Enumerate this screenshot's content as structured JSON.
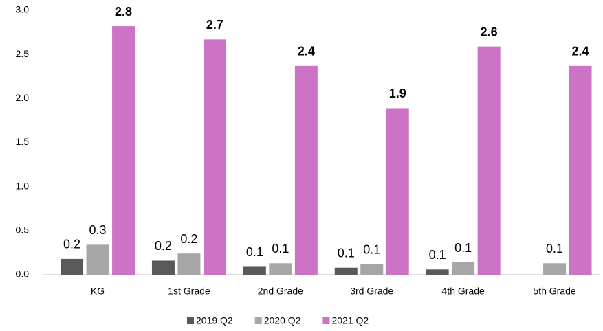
{
  "chart_data": {
    "type": "bar",
    "categories": [
      "KG",
      "1st Grade",
      "2nd Grade",
      "3rd Grade",
      "4th Grade",
      "5th Grade"
    ],
    "series": [
      {
        "name": "2019 Q2",
        "color": "#595959",
        "values": [
          0.18,
          0.16,
          0.09,
          0.08,
          0.06,
          null
        ],
        "value_labels": [
          "0.2",
          "0.2",
          "0.1",
          "0.1",
          "0.1",
          null
        ]
      },
      {
        "name": "2020 Q2",
        "color": "#a6a6a6",
        "values": [
          0.34,
          0.24,
          0.13,
          0.12,
          0.14,
          0.13
        ],
        "value_labels": [
          "0.3",
          "0.2",
          "0.1",
          "0.1",
          "0.1",
          "0.1"
        ]
      },
      {
        "name": "2021 Q2",
        "color": "#cc73c6",
        "values": [
          2.82,
          2.67,
          2.37,
          1.89,
          2.59,
          2.37
        ],
        "value_labels": [
          "2.8",
          "2.7",
          "2.4",
          "1.9",
          "2.6",
          "2.4"
        ]
      }
    ],
    "ylim": [
      0,
      3
    ],
    "yticks": [
      {
        "value": 0,
        "label": "0.0"
      },
      {
        "value": 0.5,
        "label": "0.5"
      },
      {
        "value": 1,
        "label": "1.0"
      },
      {
        "value": 1.5,
        "label": "1.5"
      },
      {
        "value": 2,
        "label": "2.0"
      },
      {
        "value": 2.5,
        "label": "2.5"
      },
      {
        "value": 3,
        "label": "3.0"
      }
    ],
    "grid": false,
    "legend": "bottom"
  }
}
